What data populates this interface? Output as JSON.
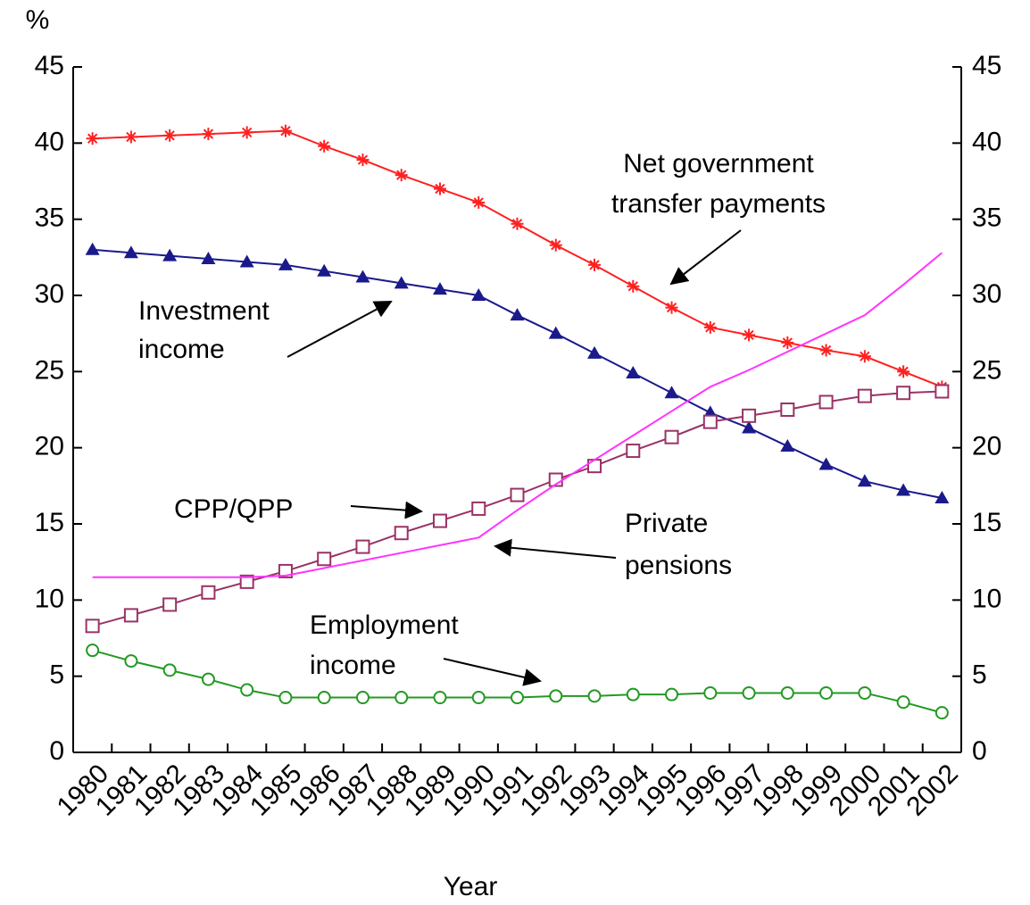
{
  "chart_data": {
    "type": "line",
    "y_label": "%",
    "x_label": "Year",
    "categories": [
      "1980",
      "1981",
      "1982",
      "1983",
      "1984",
      "1985",
      "1986",
      "1987",
      "1988",
      "1989",
      "1990",
      "1991",
      "1992",
      "1993",
      "1994",
      "1995",
      "1996",
      "1997",
      "1998",
      "1999",
      "2000",
      "2001",
      "2002"
    ],
    "ylim": [
      0,
      45
    ],
    "yticks": [
      0,
      5,
      10,
      15,
      20,
      25,
      30,
      35,
      40,
      45
    ],
    "right_axis_mirror": true,
    "series": [
      {
        "label": [
          "Net government",
          "transfer payments"
        ],
        "color": "#ff2020",
        "marker": "star",
        "values": [
          40.3,
          40.4,
          40.5,
          40.6,
          40.7,
          40.8,
          39.8,
          38.9,
          37.9,
          37.0,
          36.1,
          34.7,
          33.3,
          32.0,
          30.6,
          29.2,
          27.9,
          27.4,
          26.9,
          26.4,
          26.0,
          25.0,
          24.0
        ]
      },
      {
        "label": [
          "Investment",
          "income"
        ],
        "color": "#1a1a8c",
        "marker": "triangle",
        "values": [
          33.0,
          32.8,
          32.6,
          32.4,
          32.2,
          32.0,
          31.6,
          31.2,
          30.8,
          30.4,
          30.0,
          28.7,
          27.5,
          26.2,
          24.9,
          23.6,
          22.3,
          21.3,
          20.1,
          18.9,
          17.8,
          17.2,
          16.7
        ]
      },
      {
        "label": [
          "CPP/QPP"
        ],
        "color": "#993366",
        "marker": "square",
        "values": [
          8.3,
          9.0,
          9.7,
          10.5,
          11.2,
          11.9,
          12.7,
          13.5,
          14.4,
          15.2,
          16.0,
          16.9,
          17.9,
          18.8,
          19.8,
          20.7,
          21.7,
          22.1,
          22.5,
          23.0,
          23.4,
          23.6,
          23.7
        ]
      },
      {
        "label": [
          "Private",
          "pensions"
        ],
        "color": "#ff33ff",
        "marker": "none",
        "values": [
          11.5,
          11.5,
          11.5,
          11.5,
          11.5,
          11.6,
          12.1,
          12.6,
          13.1,
          13.6,
          14.1,
          15.9,
          17.6,
          19.2,
          20.8,
          22.4,
          24.0,
          25.1,
          26.3,
          27.5,
          28.7,
          30.7,
          32.8
        ]
      },
      {
        "label": [
          "Employment",
          "income"
        ],
        "color": "#229922",
        "marker": "circle",
        "values": [
          6.7,
          6.0,
          5.4,
          4.8,
          4.1,
          3.6,
          3.6,
          3.6,
          3.6,
          3.6,
          3.6,
          3.6,
          3.7,
          3.7,
          3.8,
          3.8,
          3.9,
          3.9,
          3.9,
          3.9,
          3.9,
          3.3,
          2.6
        ]
      }
    ]
  }
}
